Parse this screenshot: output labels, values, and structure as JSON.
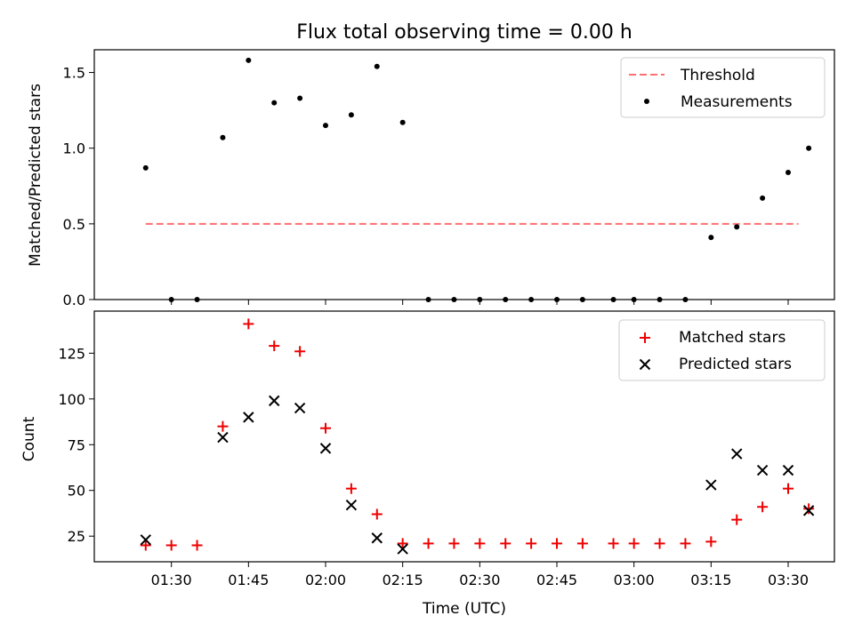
{
  "chart_data": [
    {
      "type": "scatter",
      "title": "Flux total observing time = 0.00 h",
      "xlabel": "",
      "ylabel": "Matched/Predicted stars",
      "ylim": [
        0,
        1.65
      ],
      "yticks": [
        "0.0",
        "0.5",
        "1.0",
        "1.5"
      ],
      "legend_position": "top-right",
      "threshold": {
        "name": "Threshold",
        "value": 0.5,
        "x_start": "01:25",
        "x_end": "03:32",
        "color": "#ff7070"
      },
      "series": [
        {
          "name": "Measurements",
          "color": "#000000",
          "marker": "dot",
          "points": [
            [
              "01:25",
              0.87
            ],
            [
              "01:30",
              0.0
            ],
            [
              "01:35",
              0.0
            ],
            [
              "01:40",
              1.07
            ],
            [
              "01:45",
              1.58
            ],
            [
              "01:50",
              1.3
            ],
            [
              "01:55",
              1.33
            ],
            [
              "02:00",
              1.15
            ],
            [
              "02:05",
              1.22
            ],
            [
              "02:10",
              1.54
            ],
            [
              "02:15",
              1.17
            ],
            [
              "02:20",
              0.0
            ],
            [
              "02:25",
              0.0
            ],
            [
              "02:30",
              0.0
            ],
            [
              "02:35",
              0.0
            ],
            [
              "02:40",
              0.0
            ],
            [
              "02:45",
              0.0
            ],
            [
              "02:50",
              0.0
            ],
            [
              "02:56",
              0.0
            ],
            [
              "03:00",
              0.0
            ],
            [
              "03:05",
              0.0
            ],
            [
              "03:10",
              0.0
            ],
            [
              "03:15",
              0.41
            ],
            [
              "03:20",
              0.48
            ],
            [
              "03:25",
              0.67
            ],
            [
              "03:30",
              0.84
            ],
            [
              "03:34",
              1.0
            ]
          ]
        }
      ]
    },
    {
      "type": "scatter",
      "title": "",
      "xlabel": "Time (UTC)",
      "ylabel": "Count",
      "ylim": [
        11,
        148
      ],
      "xlim": [
        "01:15",
        "03:39"
      ],
      "xticks": [
        "01:30",
        "01:45",
        "02:00",
        "02:15",
        "02:30",
        "02:45",
        "03:00",
        "03:15",
        "03:30"
      ],
      "yticks": [
        "25",
        "50",
        "75",
        "100",
        "125"
      ],
      "legend_position": "top-right",
      "series": [
        {
          "name": "Matched stars",
          "color": "#ee0000",
          "marker": "plus",
          "points": [
            [
              "01:25",
              20
            ],
            [
              "01:30",
              20
            ],
            [
              "01:35",
              20
            ],
            [
              "01:40",
              85
            ],
            [
              "01:45",
              141
            ],
            [
              "01:50",
              129
            ],
            [
              "01:55",
              126
            ],
            [
              "02:00",
              84
            ],
            [
              "02:05",
              51
            ],
            [
              "02:10",
              37
            ],
            [
              "02:15",
              21
            ],
            [
              "02:20",
              21
            ],
            [
              "02:25",
              21
            ],
            [
              "02:30",
              21
            ],
            [
              "02:35",
              21
            ],
            [
              "02:40",
              21
            ],
            [
              "02:45",
              21
            ],
            [
              "02:50",
              21
            ],
            [
              "02:56",
              21
            ],
            [
              "03:00",
              21
            ],
            [
              "03:05",
              21
            ],
            [
              "03:10",
              21
            ],
            [
              "03:15",
              22
            ],
            [
              "03:20",
              34
            ],
            [
              "03:25",
              41
            ],
            [
              "03:30",
              51
            ],
            [
              "03:34",
              40
            ]
          ]
        },
        {
          "name": "Predicted stars",
          "color": "#000000",
          "marker": "x",
          "points": [
            [
              "01:25",
              23
            ],
            [
              "01:40",
              79
            ],
            [
              "01:45",
              90
            ],
            [
              "01:50",
              99
            ],
            [
              "01:55",
              95
            ],
            [
              "02:00",
              73
            ],
            [
              "02:05",
              42
            ],
            [
              "02:10",
              24
            ],
            [
              "02:15",
              18
            ],
            [
              "03:15",
              53
            ],
            [
              "03:20",
              70
            ],
            [
              "03:25",
              61
            ],
            [
              "03:30",
              61
            ],
            [
              "03:34",
              39
            ]
          ]
        }
      ]
    }
  ]
}
